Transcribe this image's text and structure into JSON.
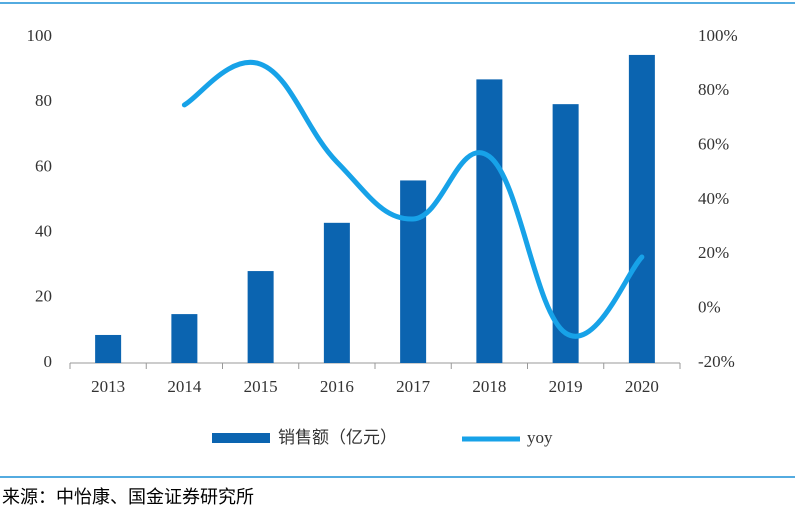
{
  "chart_data": {
    "type": "bar-line",
    "categories": [
      "2013",
      "2014",
      "2015",
      "2016",
      "2017",
      "2018",
      "2019",
      "2020"
    ],
    "series": [
      {
        "name": "销售额（亿元）",
        "type": "bar",
        "color": "#0b64b0",
        "values": [
          8.6,
          15,
          28.2,
          43,
          56,
          87,
          79.4,
          94.5
        ]
      },
      {
        "name": "yoy",
        "type": "line",
        "axis": "y2",
        "color": "#17a2e8",
        "values": [
          null,
          75,
          90,
          54,
          33,
          56,
          -9,
          19
        ]
      }
    ],
    "ylim": [
      0,
      100
    ],
    "yticks": [
      0,
      20,
      40,
      60,
      80,
      100
    ],
    "y2lim": [
      -20,
      100
    ],
    "y2ticks": [
      {
        "value": -20,
        "label": "-20%"
      },
      {
        "value": 0,
        "label": "0%"
      },
      {
        "value": 20,
        "label": "20%"
      },
      {
        "value": 40,
        "label": "40%"
      },
      {
        "value": 60,
        "label": "60%"
      },
      {
        "value": 80,
        "label": "80%"
      },
      {
        "value": 100,
        "label": "100%"
      }
    ],
    "legend": "bottom",
    "source": "来源：中怡康、国金证券研究所"
  }
}
